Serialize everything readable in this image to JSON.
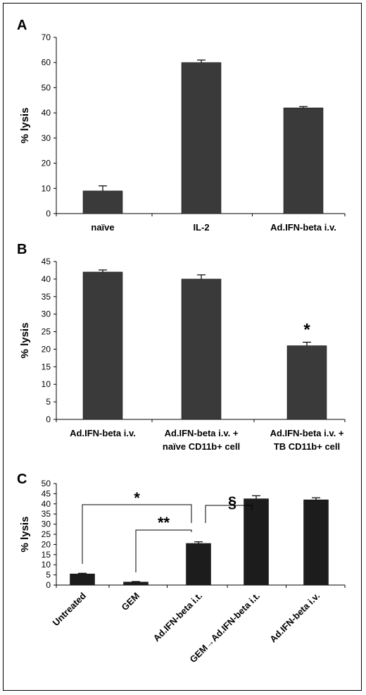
{
  "chart_data": [
    {
      "panel": "A",
      "type": "bar",
      "ylabel": "% lysis",
      "ylim": [
        0,
        70
      ],
      "yticks": [
        "0",
        "10",
        "20",
        "30",
        "40",
        "50",
        "60",
        "70"
      ],
      "categories": [
        [
          "naïve"
        ],
        [
          "IL-2"
        ],
        [
          "Ad.IFN-beta i.v."
        ]
      ],
      "values": [
        9,
        60,
        42
      ],
      "errors": [
        2,
        1,
        0.5
      ],
      "bar_color": "#3a3a3a",
      "grid": false
    },
    {
      "panel": "B",
      "type": "bar",
      "ylabel": "% lysis",
      "ylim": [
        0,
        45
      ],
      "yticks": [
        "0",
        "5",
        "10",
        "15",
        "20",
        "25",
        "30",
        "35",
        "40",
        "45"
      ],
      "categories": [
        [
          "Ad.IFN-beta i.v."
        ],
        [
          "Ad.IFN-beta i.v. +",
          "naïve CD11b+ cell"
        ],
        [
          "Ad.IFN-beta i.v. +",
          "TB CD11b+ cell"
        ]
      ],
      "values": [
        42,
        40,
        21
      ],
      "errors": [
        0.6,
        1.2,
        1.0
      ],
      "annotations": [
        {
          "index": 2,
          "text": "*"
        }
      ],
      "bar_color": "#3a3a3a",
      "grid": false
    },
    {
      "panel": "C",
      "type": "bar",
      "ylabel": "% lysis",
      "ylim": [
        0,
        50
      ],
      "yticks": [
        "0",
        "5",
        "10",
        "15",
        "20",
        "25",
        "30",
        "35",
        "40",
        "45",
        "50"
      ],
      "categories": [
        "Untreated",
        "GEM",
        "Ad.IFN-beta i.t.",
        "GEM→Ad.IFN-beta i.t.",
        "Ad.IFN-beta i.v."
      ],
      "values": [
        5.5,
        1.5,
        20.5,
        42.5,
        42
      ],
      "errors": [
        0.3,
        0.2,
        0.8,
        1.5,
        1.0
      ],
      "brackets": [
        {
          "from": 0,
          "to": 2,
          "text": "*"
        },
        {
          "from": 1,
          "to": 2,
          "text": "**"
        },
        {
          "from": 2,
          "to": 3,
          "text": "§"
        }
      ],
      "bar_color": "#1c1c1c",
      "grid": false
    }
  ]
}
